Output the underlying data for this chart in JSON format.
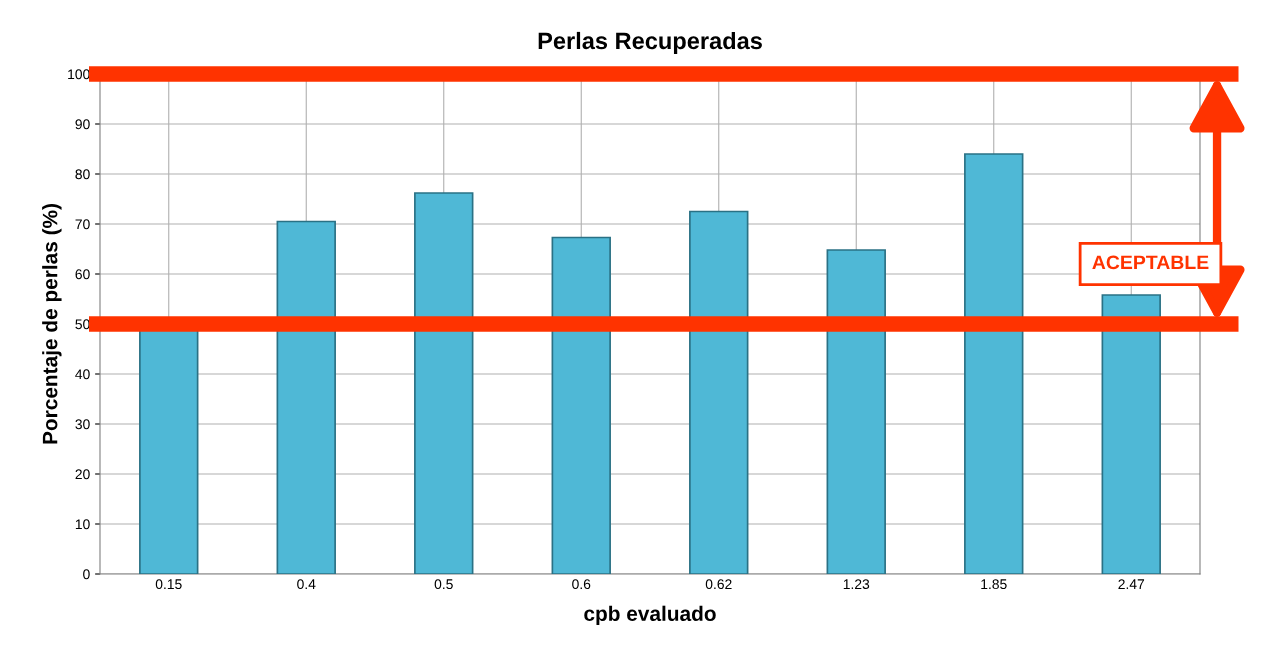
{
  "chart_data": {
    "type": "bar",
    "title": "Perlas Recuperadas",
    "xlabel": "cpb evaluado",
    "ylabel": "Porcentaje de perlas (%)",
    "categories": [
      "0.15",
      "0.4",
      "0.5",
      "0.6",
      "0.62",
      "1.23",
      "1.85",
      "2.47"
    ],
    "values": [
      49,
      70.5,
      76.2,
      67.3,
      72.5,
      64.8,
      84,
      55.8
    ],
    "color": "#4fb8d6",
    "ylim": [
      0,
      100
    ],
    "yticks": [
      0,
      10,
      20,
      30,
      40,
      50,
      60,
      70,
      80,
      90,
      100
    ],
    "grid": true,
    "ref_lines": [
      {
        "axis": "y",
        "value": 100,
        "color": "#ff3300"
      },
      {
        "axis": "y",
        "value": 50,
        "color": "#ff3300"
      }
    ],
    "annotations": [
      "ACEPTABLE"
    ]
  }
}
